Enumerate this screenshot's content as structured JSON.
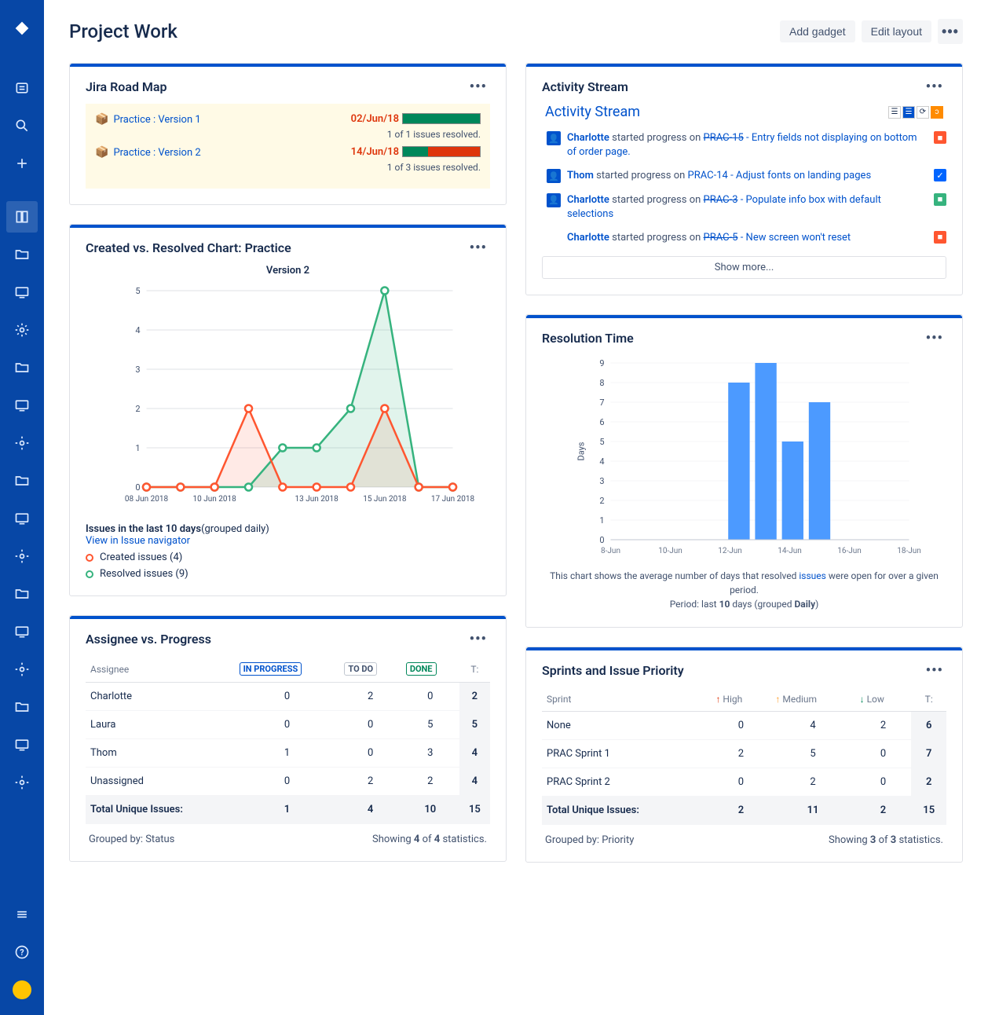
{
  "page_title": "Project Work",
  "header": {
    "add_gadget": "Add gadget",
    "edit_layout": "Edit layout"
  },
  "roadmap": {
    "title": "Jira Road Map",
    "items": [
      {
        "name": "Practice : Version 1",
        "date": "02/Jun/18",
        "green": 100,
        "red": 0,
        "sub": "1 of 1 issues resolved."
      },
      {
        "name": "Practice : Version 2",
        "date": "14/Jun/18",
        "green": 33,
        "red": 67,
        "sub": "1 of 3 issues resolved."
      }
    ]
  },
  "created_resolved": {
    "title": "Created vs. Resolved Chart: Practice",
    "subtitle": "Version 2",
    "x_labels": [
      "08 Jun 2018",
      "",
      "10 Jun 2018",
      "",
      "",
      "13 Jun 2018",
      "",
      "15 Jun 2018",
      "",
      "17 Jun 2018"
    ],
    "created": [
      0,
      0,
      0,
      2,
      0,
      0,
      0,
      2,
      0,
      0
    ],
    "resolved": [
      0,
      0,
      0,
      0,
      1,
      1,
      2,
      5,
      0,
      0
    ],
    "created_color": "#FF5630",
    "resolved_color": "#36B37E",
    "ymax": 5,
    "footer_bold": "Issues in the last 10 days",
    "footer_rest": "(grouped daily)",
    "view_link": "View in Issue navigator",
    "legend_created": "Created issues (4)",
    "legend_resolved": "Resolved issues (9)"
  },
  "assignee_progress": {
    "title": "Assignee vs. Progress",
    "columns": [
      "Assignee",
      "IN PROGRESS",
      "TO DO",
      "DONE",
      "T:"
    ],
    "rows": [
      [
        "Charlotte",
        "0",
        "2",
        "0",
        "2"
      ],
      [
        "Laura",
        "0",
        "0",
        "5",
        "5"
      ],
      [
        "Thom",
        "1",
        "0",
        "3",
        "4"
      ],
      [
        "Unassigned",
        "0",
        "2",
        "2",
        "4"
      ]
    ],
    "total_row": [
      "Total Unique Issues:",
      "1",
      "4",
      "10",
      "15"
    ],
    "grouped": "Grouped by: Status",
    "showing": "Showing 4 of 4 statistics."
  },
  "activity": {
    "title": "Activity Stream",
    "subtitle": "Activity Stream",
    "items": [
      {
        "user": "Charlotte",
        "action": "started progress on",
        "issue_key": "PRAC-15",
        "strike": true,
        "issue_title": "- Entry fields not displaying on bottom of order page.",
        "badge_color": "#FF5630",
        "avatar": true
      },
      {
        "user": "Thom",
        "action": "started progress on",
        "issue_key": "PRAC-14",
        "strike": false,
        "issue_title": "- Adjust fonts on landing pages",
        "badge_color": "#0065FF",
        "avatar": true
      },
      {
        "user": "Charlotte",
        "action": "started progress on",
        "issue_key": "PRAC-3",
        "strike": true,
        "issue_title": "- Populate info box with default selections",
        "badge_color": "#36B37E",
        "avatar": true
      },
      {
        "user": "Charlotte",
        "action": "started progress on",
        "issue_key": "PRAC-5",
        "strike": true,
        "issue_title": "- New screen won't reset",
        "badge_color": "#FF5630",
        "avatar": false
      }
    ],
    "show_more": "Show more..."
  },
  "resolution_time": {
    "title": "Resolution Time",
    "x_labels": [
      "8-Jun",
      "10-Jun",
      "12-Jun",
      "14-Jun",
      "16-Jun",
      "18-Jun"
    ],
    "bars": [
      {
        "pos": 2.15,
        "value": 8
      },
      {
        "pos": 2.6,
        "value": 9
      },
      {
        "pos": 3.05,
        "value": 5
      },
      {
        "pos": 3.5,
        "value": 7
      }
    ],
    "ymax": 9,
    "y_label": "Days",
    "bar_color": "#4C9AFF",
    "caption_1": "This chart shows the average number of days that resolved ",
    "caption_link": "issues",
    "caption_2": " were open for over a given period.",
    "caption_3": "Period: last 10 days (grouped Daily)"
  },
  "sprints": {
    "title": "Sprints and Issue Priority",
    "columns": [
      "Sprint",
      "High",
      "Medium",
      "Low",
      "T:"
    ],
    "rows": [
      [
        "None",
        "0",
        "4",
        "2",
        "6"
      ],
      [
        "PRAC Sprint 1",
        "2",
        "5",
        "0",
        "7"
      ],
      [
        "PRAC Sprint 2",
        "0",
        "2",
        "0",
        "2"
      ]
    ],
    "total_row": [
      "Total Unique Issues:",
      "2",
      "11",
      "2",
      "15"
    ],
    "grouped": "Grouped by: Priority",
    "showing": "Showing 3 of 3 statistics."
  }
}
